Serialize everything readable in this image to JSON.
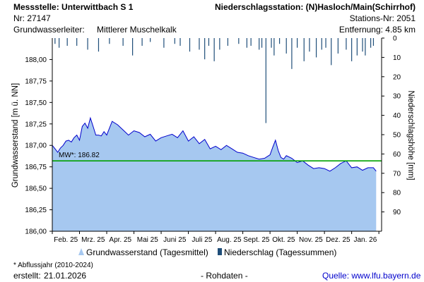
{
  "header": {
    "station_label": "Messstelle: Unterwittbach S 1",
    "station_nr": "Nr: 27147",
    "aquifer_label": "Grundwasserleiter:",
    "aquifer_value": "Mittlerer Muschelkalk",
    "precip_station": "Niederschlagsstation: (N)Hasloch/Main(Schirrhof)",
    "precip_station_nr": "Stations-Nr: 2051",
    "distance": "Entfernung: 4.85 km"
  },
  "legend": {
    "groundwater": "Grundwasserstand (Tagesmittel)",
    "precip": "Niederschlag (Tagessummen)"
  },
  "footer": {
    "note": "* Abflussjahr (2010-2024)",
    "created_label": "erstellt:",
    "created_date": "21.01.2026",
    "raw": "- Rohdaten -",
    "source": "Quelle: www.lfu.bayern.de"
  },
  "colors": {
    "area_fill": "#a6c8f0",
    "line": "#0000cc",
    "mean_line": "#00a000",
    "precip": "#1f4e79",
    "axis": "#000000"
  },
  "chart_data": {
    "type": "area",
    "title": "",
    "xlabel": "",
    "ylabel": "Grundwasserstand [m ü. NN]",
    "y2label": "Niederschlagshöhe [mm]",
    "ylim": [
      186.0,
      188.25
    ],
    "y_ticks": [
      "188,00",
      "187,75",
      "187,50",
      "187,25",
      "187,00",
      "186,75",
      "186,50",
      "186,25",
      "186,00"
    ],
    "y_tick_values": [
      188.0,
      187.75,
      187.5,
      187.25,
      187.0,
      186.75,
      186.5,
      186.25,
      186.0
    ],
    "y2lim": [
      0,
      100
    ],
    "y2_ticks": [
      "0",
      "10",
      "20",
      "30",
      "40",
      "50",
      "60",
      "70",
      "80",
      "90"
    ],
    "y2_tick_values": [
      0,
      10,
      20,
      30,
      40,
      50,
      60,
      70,
      80,
      90
    ],
    "x_range": [
      0,
      12.1
    ],
    "x_ticks": [
      "Feb. 25",
      "Mrz. 25",
      "Apr. 25",
      "Mai 25",
      "Juni 25",
      "Juli 25",
      "Aug. 25",
      "Sept. 25",
      "Okt. 25",
      "Nov. 25",
      "Dez. 25",
      "Jan. 26"
    ],
    "mean": {
      "label": "MW*: 186.82",
      "value": 186.82
    },
    "series": [
      {
        "name": "Grundwasserstand (Tagesmittel)",
        "x": [
          0,
          0.1,
          0.2,
          0.3,
          0.4,
          0.5,
          0.6,
          0.7,
          0.8,
          0.9,
          1.0,
          1.1,
          1.2,
          1.3,
          1.4,
          1.5,
          1.6,
          1.7,
          1.8,
          1.9,
          2.0,
          2.2,
          2.4,
          2.6,
          2.8,
          3.0,
          3.2,
          3.4,
          3.6,
          3.8,
          4.0,
          4.2,
          4.4,
          4.6,
          4.8,
          5.0,
          5.2,
          5.4,
          5.6,
          5.8,
          6.0,
          6.2,
          6.4,
          6.6,
          6.8,
          7.0,
          7.2,
          7.4,
          7.6,
          7.8,
          8.0,
          8.1,
          8.2,
          8.3,
          8.4,
          8.5,
          8.6,
          8.8,
          9.0,
          9.2,
          9.4,
          9.6,
          9.8,
          10.0,
          10.2,
          10.4,
          10.6,
          10.8,
          11.0,
          11.2,
          11.4,
          11.6,
          11.8,
          11.9
        ],
        "y": [
          187.0,
          186.96,
          186.92,
          186.97,
          187.0,
          187.05,
          187.06,
          187.04,
          187.09,
          187.12,
          187.06,
          187.22,
          187.26,
          187.2,
          187.32,
          187.22,
          187.12,
          187.12,
          187.11,
          187.16,
          187.12,
          187.28,
          187.24,
          187.18,
          187.12,
          187.17,
          187.15,
          187.1,
          187.13,
          187.05,
          187.09,
          187.11,
          187.13,
          187.09,
          187.17,
          187.05,
          187.1,
          187.02,
          187.07,
          186.96,
          186.99,
          186.95,
          187.0,
          186.96,
          186.92,
          186.91,
          186.88,
          186.86,
          186.84,
          186.85,
          186.89,
          186.98,
          187.06,
          186.94,
          186.86,
          186.84,
          186.88,
          186.85,
          186.8,
          186.82,
          186.77,
          186.73,
          186.74,
          186.73,
          186.7,
          186.74,
          186.79,
          186.82,
          186.74,
          186.75,
          186.71,
          186.74,
          186.74,
          186.7
        ]
      },
      {
        "name": "Niederschlag (Tagessummen)",
        "x": [
          0.1,
          0.25,
          0.55,
          0.9,
          1.3,
          1.7,
          2.1,
          2.6,
          2.95,
          3.3,
          3.6,
          4.1,
          4.5,
          4.7,
          5.05,
          5.4,
          5.6,
          5.75,
          5.95,
          6.15,
          6.45,
          6.85,
          7.15,
          7.3,
          7.6,
          7.7,
          7.85,
          8.05,
          8.15,
          8.35,
          8.6,
          8.8,
          9.0,
          9.25,
          9.45,
          9.7,
          9.9,
          10.05,
          10.25,
          10.5,
          10.8,
          11.0,
          11.2,
          11.4,
          11.5,
          11.7,
          11.8
        ],
        "y": [
          3,
          5,
          4,
          4,
          6,
          7,
          3,
          4,
          9,
          4,
          2,
          5,
          3,
          4,
          7,
          6,
          11,
          4,
          12,
          6,
          4,
          3,
          5,
          4,
          6,
          5,
          44,
          5,
          9,
          3,
          8,
          16,
          5,
          12,
          7,
          10,
          6,
          5,
          14,
          8,
          6,
          12,
          9,
          7,
          9,
          5,
          4
        ]
      }
    ]
  }
}
